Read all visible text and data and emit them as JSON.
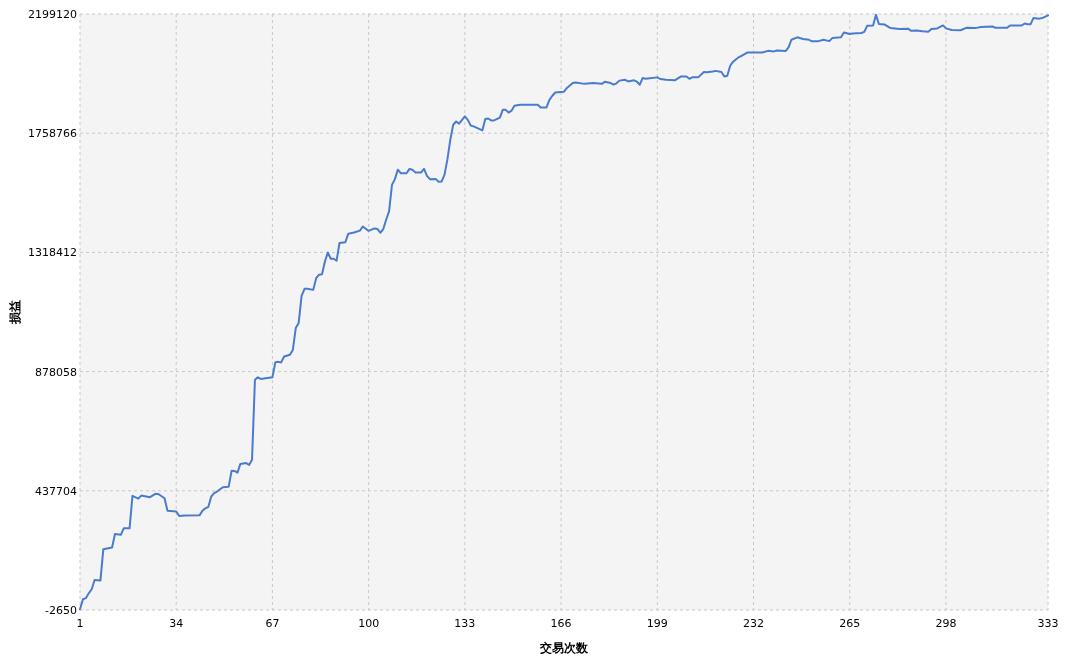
{
  "chart_data": {
    "type": "line",
    "xlabel": "交易次数",
    "ylabel": "损益",
    "x": [
      1,
      2,
      3,
      4,
      5,
      6,
      8,
      9,
      12,
      13,
      15,
      16,
      18,
      19,
      21,
      22,
      25,
      27,
      28,
      30,
      31,
      34,
      35,
      37,
      42,
      43,
      44,
      45,
      46,
      47,
      48,
      50,
      52,
      53,
      54,
      55,
      56,
      58,
      59,
      60,
      61,
      62,
      63,
      67,
      68,
      69,
      70,
      71,
      73,
      74,
      75,
      76,
      77,
      78,
      79,
      81,
      82,
      83,
      84,
      85,
      86,
      87,
      88,
      89,
      90,
      92,
      93,
      95,
      97,
      98,
      99,
      100,
      102,
      103,
      104,
      105,
      106,
      107,
      108,
      109,
      110,
      111,
      113,
      114,
      115,
      116,
      118,
      119,
      120,
      121,
      123,
      124,
      125,
      126,
      127,
      128,
      129,
      130,
      131,
      133,
      134,
      135,
      136,
      139,
      140,
      141,
      142,
      143,
      145,
      146,
      147,
      148,
      149,
      150,
      152,
      158,
      159,
      161,
      162,
      163,
      164,
      167,
      168,
      170,
      171,
      174,
      177,
      180,
      181,
      183,
      184,
      185,
      186,
      188,
      189,
      191,
      192,
      193,
      194,
      195,
      199,
      200,
      202,
      205,
      207,
      209,
      210,
      211,
      213,
      215,
      216,
      218,
      219,
      221,
      222,
      223,
      224,
      225,
      227,
      228,
      230,
      235,
      237,
      239,
      240,
      243,
      244,
      245,
      247,
      249,
      251,
      252,
      254,
      256,
      258,
      259,
      262,
      263,
      265,
      266,
      269,
      270,
      271,
      273,
      274,
      275,
      277,
      279,
      282,
      285,
      286,
      288,
      290,
      292,
      293,
      295,
      297,
      298,
      300,
      303,
      305,
      308,
      310,
      314,
      315,
      319,
      320,
      324,
      325,
      326,
      327,
      328,
      330,
      331,
      333
    ],
    "series": [
      {
        "color": "#4a7bcf",
        "values": [
          0,
          37000,
          41000,
          59000,
          74000,
          108000,
          106000,
          222000,
          228000,
          278000,
          275000,
          299000,
          299000,
          419000,
          409000,
          420000,
          414000,
          427000,
          425000,
          410000,
          364000,
          361000,
          345000,
          346000,
          347000,
          364000,
          373000,
          378000,
          416000,
          429000,
          435000,
          451000,
          453000,
          512000,
          511000,
          505000,
          537000,
          540000,
          533000,
          552000,
          848000,
          857000,
          851000,
          857000,
          913000,
          914000,
          912000,
          934000,
          940000,
          958000,
          1039000,
          1058000,
          1158000,
          1184000,
          1184000,
          1180000,
          1223000,
          1236000,
          1238000,
          1285000,
          1318000,
          1295000,
          1295000,
          1288000,
          1353000,
          1356000,
          1387000,
          1392000,
          1399000,
          1414000,
          1406000,
          1398000,
          1407000,
          1405000,
          1391000,
          1404000,
          1439000,
          1470000,
          1568000,
          1589000,
          1624000,
          1611000,
          1611000,
          1627000,
          1624000,
          1614000,
          1614000,
          1627000,
          1601000,
          1589000,
          1590000,
          1579000,
          1580000,
          1605000,
          1661000,
          1734000,
          1790000,
          1802000,
          1794000,
          1821000,
          1808000,
          1787000,
          1784000,
          1769000,
          1811000,
          1813000,
          1806000,
          1806000,
          1816000,
          1845000,
          1845000,
          1835000,
          1842000,
          1860000,
          1864000,
          1864000,
          1854000,
          1854000,
          1882000,
          1897000,
          1909000,
          1912000,
          1926000,
          1944000,
          1946000,
          1941000,
          1944000,
          1941000,
          1949000,
          1944000,
          1938000,
          1943000,
          1953000,
          1956000,
          1950000,
          1954000,
          1949000,
          1938000,
          1963000,
          1960000,
          1965000,
          1959000,
          1956000,
          1954000,
          1968000,
          1968000,
          1960000,
          1965000,
          1965000,
          1985000,
          1984000,
          1987000,
          1989000,
          1985000,
          1968000,
          1971000,
          2008000,
          2023000,
          2040000,
          2045000,
          2057000,
          2057000,
          2063000,
          2061000,
          2064000,
          2062000,
          2076000,
          2104000,
          2113000,
          2107000,
          2104000,
          2098000,
          2098000,
          2104000,
          2099000,
          2110000,
          2113000,
          2131000,
          2125000,
          2127000,
          2129000,
          2133000,
          2156000,
          2157000,
          2196000,
          2162000,
          2160000,
          2147000,
          2144000,
          2145000,
          2137000,
          2138000,
          2135000,
          2134000,
          2144000,
          2146000,
          2157000,
          2146000,
          2140000,
          2139000,
          2148000,
          2147000,
          2151000,
          2153000,
          2148000,
          2148000,
          2157000,
          2157000,
          2164000,
          2161000,
          2161000,
          2184000,
          2182000,
          2184000,
          2194000
        ]
      }
    ],
    "xlim": [
      1,
      333
    ],
    "ylim": [
      -2650,
      2199120
    ],
    "xticks": [
      1,
      34,
      67,
      100,
      133,
      166,
      199,
      232,
      265,
      298,
      333
    ],
    "yticks": [
      -2650,
      437704,
      878058,
      1318412,
      1758766,
      2199120
    ],
    "grid": true
  }
}
